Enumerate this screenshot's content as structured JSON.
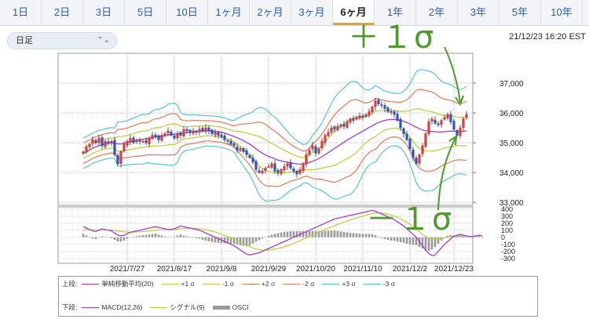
{
  "tabs": [
    "1日",
    "2日",
    "3日",
    "5日",
    "10日",
    "1ヶ月",
    "2ヶ月",
    "3ヶ月",
    "6ヶ月",
    "1年",
    "2年",
    "3年",
    "5年",
    "10年"
  ],
  "active_tab": "6ヶ月",
  "select": {
    "value": "日足"
  },
  "timestamp": "21/12/23 16:20 EST",
  "annotations": {
    "plus": "＋１σ",
    "minus": "－１σ"
  },
  "chart_data": [
    {
      "type": "candlestick",
      "x_ticks": [
        "2021/7/27",
        "2021/8/17",
        "2021/9/8",
        "2021/9/29",
        "2021/10/20",
        "2021/11/10",
        "2021/12/2",
        "2021/12/23"
      ],
      "y_ticks": [
        "37,000",
        "36,000",
        "35,000",
        "34,000",
        "33,000"
      ],
      "ylim": [
        32900,
        38000
      ],
      "close": [
        34700,
        34850,
        34950,
        35100,
        35000,
        35150,
        34900,
        35050,
        35000,
        35050,
        34600,
        34300,
        34700,
        34950,
        35050,
        35150,
        35000,
        35100,
        35050,
        35050,
        35000,
        35150,
        35250,
        35200,
        35100,
        35250,
        35300,
        35400,
        35250,
        35150,
        35300,
        35250,
        35450,
        35400,
        35350,
        35400,
        35350,
        35450,
        35400,
        35500,
        35400,
        35300,
        35350,
        35250,
        35200,
        35100,
        35050,
        34950,
        34900,
        34750,
        34800,
        34700,
        34600,
        34500,
        34350,
        34100,
        34000,
        34050,
        34150,
        34200,
        34300,
        34050,
        34000,
        34100,
        34200,
        34300,
        34150,
        34050,
        33950,
        34100,
        34300,
        34600,
        34750,
        34900,
        34650,
        34800,
        35050,
        35250,
        35350,
        35500,
        35450,
        35550,
        35600,
        35550,
        35700,
        35800,
        35750,
        35850,
        35900,
        35850,
        35950,
        36050,
        36200,
        36400,
        36300,
        36250,
        36150,
        36050,
        36050,
        35950,
        35750,
        35500,
        35300,
        35100,
        34800,
        34500,
        34300,
        34600,
        34900,
        35300,
        35700,
        35800,
        35650,
        35600,
        35750,
        35850,
        35950,
        35700,
        35450,
        35250,
        35500,
        35800,
        35950
      ],
      "series": [
        {
          "name": "単純移動平均(20)",
          "color": "#a43dc4",
          "values": [
            34650,
            34700,
            34750,
            34820,
            34860,
            34900,
            34930,
            34960,
            34980,
            35000,
            34980,
            34960,
            34960,
            34980,
            35000,
            35030,
            35050,
            35080,
            35100,
            35120,
            35130,
            35150,
            35180,
            35200,
            35200,
            35220,
            35240,
            35270,
            35280,
            35290,
            35300,
            35310,
            35330,
            35340,
            35350,
            35360,
            35370,
            35380,
            35390,
            35400,
            35400,
            35390,
            35380,
            35370,
            35350,
            35320,
            35290,
            35250,
            35210,
            35170,
            35120,
            35070,
            35010,
            34950,
            34880,
            34800,
            34720,
            34650,
            34590,
            34540,
            34500,
            34460,
            34420,
            34390,
            34370,
            34350,
            34330,
            34310,
            34290,
            34280,
            34290,
            34310,
            34340,
            34380,
            34420,
            34470,
            34530,
            34600,
            34670,
            34740,
            34810,
            34880,
            34950,
            35020,
            35090,
            35150,
            35210,
            35270,
            35330,
            35390,
            35450,
            35510,
            35570,
            35630,
            35680,
            35720,
            35750,
            35770,
            35780,
            35780,
            35770,
            35750,
            35720,
            35680,
            35630,
            35580,
            35520,
            35470,
            35430,
            35400,
            35390,
            35380,
            35370,
            35360,
            35360,
            35370,
            35380,
            35390,
            35390,
            35380,
            35370,
            35380,
            35400
          ]
        }
      ]
    },
    {
      "type": "macd",
      "y_ticks": [
        "400",
        "300",
        "200",
        "100",
        "0",
        "-100",
        "-200",
        "-300"
      ],
      "ylim": [
        -370,
        430
      ],
      "series": [
        {
          "name": "MACD(12,26)",
          "color": "#a43dc4",
          "values": [
            150,
            130,
            110,
            90,
            80,
            100,
            120,
            110,
            100,
            90,
            60,
            30,
            20,
            30,
            50,
            70,
            80,
            90,
            100,
            110,
            120,
            130,
            140,
            150,
            140,
            130,
            120,
            110,
            110,
            120,
            140,
            160,
            150,
            140,
            130,
            120,
            110,
            100,
            80,
            60,
            40,
            20,
            0,
            -20,
            -40,
            -60,
            -80,
            -100,
            -120,
            -150,
            -180,
            -210,
            -240,
            -250,
            -240,
            -230,
            -220,
            -200,
            -180,
            -160,
            -140,
            -120,
            -100,
            -80,
            -60,
            -40,
            -20,
            0,
            20,
            40,
            60,
            80,
            100,
            120,
            140,
            160,
            180,
            200,
            220,
            240,
            260,
            270,
            280,
            290,
            300,
            310,
            320,
            330,
            340,
            350,
            360,
            370,
            380,
            370,
            350,
            330,
            310,
            290,
            270,
            250,
            220,
            190,
            160,
            120,
            80,
            40,
            0,
            -60,
            -120,
            -180,
            -230,
            -260,
            -250,
            -200,
            -150,
            -100,
            -60,
            -20,
            10,
            30,
            40,
            30,
            20,
            10,
            10,
            20,
            30,
            20
          ]
        },
        {
          "name": "シグナル(9)",
          "color": "#b8cc3c",
          "values": [
            100,
            105,
            108,
            108,
            106,
            105,
            106,
            106,
            105,
            103,
            98,
            90,
            82,
            76,
            73,
            72,
            73,
            75,
            78,
            81,
            85,
            89,
            94,
            98,
            103,
            106,
            109,
            110,
            110,
            111,
            115,
            120,
            124,
            127,
            128,
            127,
            125,
            121,
            115,
            107,
            97,
            86,
            73,
            59,
            44,
            27,
            10,
            -7,
            -26,
            -46,
            -67,
            -89,
            -112,
            -133,
            -151,
            -166,
            -177,
            -182,
            -182,
            -180,
            -176,
            -169,
            -160,
            -148,
            -135,
            -120,
            -104,
            -86,
            -67,
            -48,
            -28,
            -8,
            12,
            32,
            52,
            72,
            91,
            110,
            129,
            147,
            165,
            182,
            198,
            214,
            230,
            245,
            260,
            274,
            287,
            300,
            312,
            324,
            335,
            342,
            344,
            342,
            336,
            328,
            316,
            301,
            283,
            262,
            238,
            211,
            181,
            148,
            113,
            77,
            40,
            10,
            -12,
            -24,
            -28,
            -25,
            -17,
            -8,
            0,
            7,
            12,
            14,
            14,
            13,
            13,
            15
          ]
        },
        {
          "name": "OSCI",
          "color": "#999999",
          "values": [
            50,
            25,
            2,
            -18,
            -26,
            -5,
            14,
            4,
            -5,
            -13,
            -38,
            -60,
            -62,
            -46,
            -23,
            -2,
            7,
            15,
            22,
            29,
            35,
            41,
            46,
            52,
            37,
            24,
            11,
            0,
            0,
            9,
            25,
            40,
            26,
            13,
            2,
            -7,
            -15,
            -21,
            -35,
            -47,
            -57,
            -66,
            -73,
            -79,
            -84,
            -87,
            -90,
            -93,
            -94,
            -104,
            -113,
            -121,
            -128,
            -117,
            -89,
            -64,
            -43,
            -18,
            2,
            20,
            36,
            49,
            60,
            68,
            75,
            80,
            84,
            86,
            87,
            88,
            88,
            88,
            88,
            88,
            88,
            88,
            89,
            90,
            91,
            93,
            95,
            88,
            82,
            76,
            70,
            65,
            60,
            56,
            53,
            50,
            48,
            46,
            45,
            28,
            6,
            -12,
            -26,
            -38,
            -46,
            -51,
            -63,
            -72,
            -78,
            -91,
            -101,
            -108,
            -113,
            -137,
            -160,
            -190,
            -192,
            -172,
            -138,
            -93,
            -47,
            -3,
            23,
            31,
            28,
            30,
            29,
            22,
            13,
            7,
            8,
            13,
            19,
            9
          ]
        }
      ]
    }
  ],
  "legend": {
    "upper_label": "上段:",
    "lower_label": "下段:",
    "upper": [
      {
        "label": "単純移動平均(20)",
        "color": "#a43dc4"
      },
      {
        "label": "+1 σ",
        "color": "#b8cc3c"
      },
      {
        "label": "-1 σ",
        "color": "#b8cc3c"
      },
      {
        "label": "+2 σ",
        "color": "#e07a55"
      },
      {
        "label": "-2 σ",
        "color": "#e07a55"
      },
      {
        "label": "+3 σ",
        "color": "#5bc0d8"
      },
      {
        "label": "-3 σ",
        "color": "#5bc0d8"
      }
    ],
    "lower": [
      {
        "label": "MACD(12,26)",
        "color": "#a43dc4"
      },
      {
        "label": "シグナル(9)",
        "color": "#b8cc3c"
      },
      {
        "label": "OSCI",
        "color": "#999999"
      }
    ]
  }
}
